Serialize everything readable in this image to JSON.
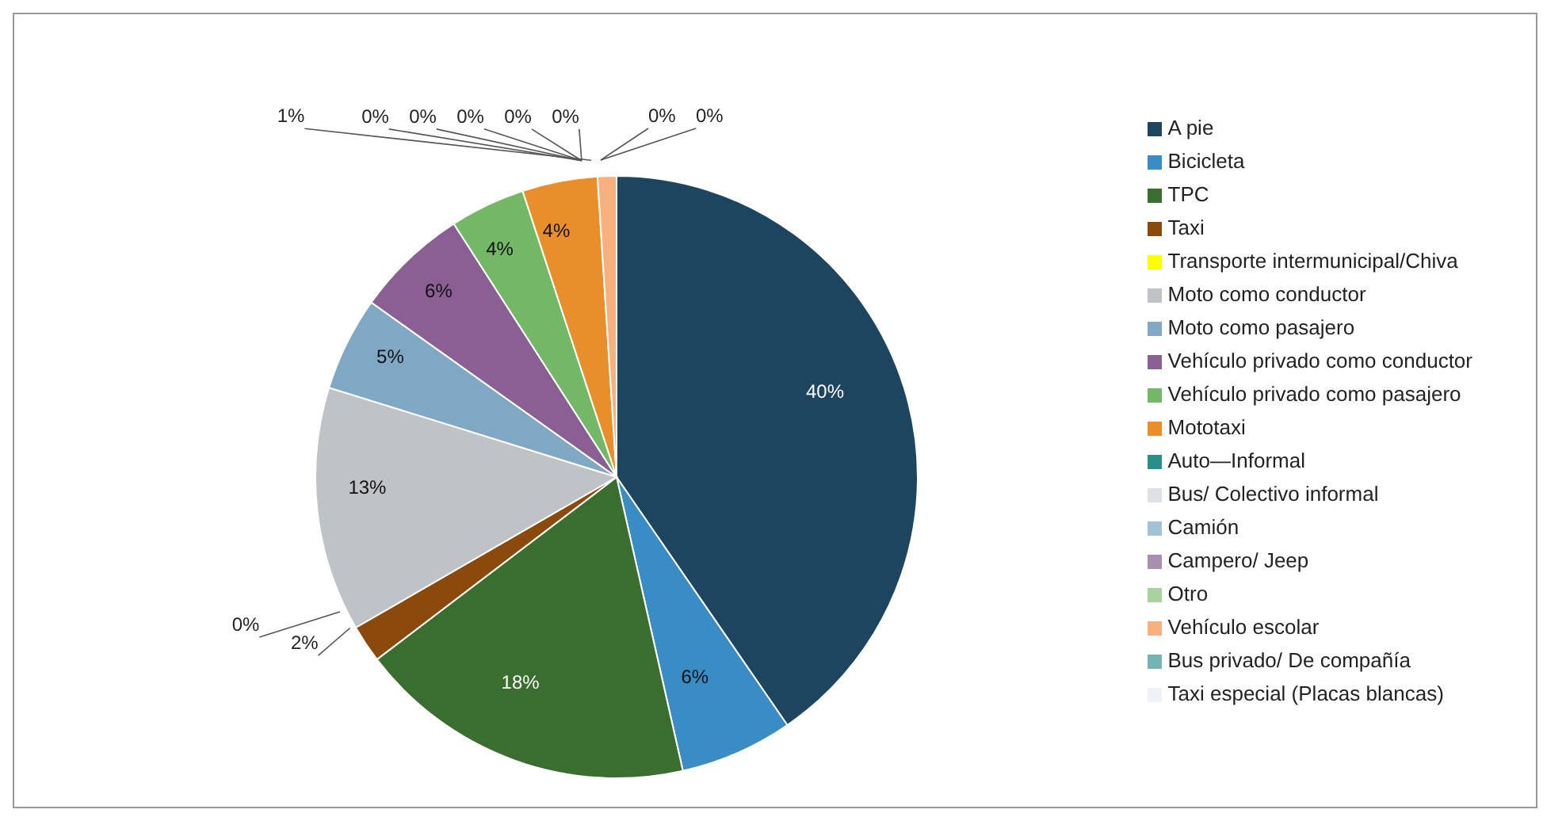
{
  "chart_data": {
    "type": "pie",
    "categories": [
      "A pie",
      "Bicicleta",
      "TPC",
      "Taxi",
      "Transporte intermunicipal/Chiva",
      "Moto como conductor",
      "Moto como pasajero",
      "Vehículo privado como conductor",
      "Vehículo privado como pasajero",
      "Mototaxi",
      "Auto—Informal",
      "Bus/ Colectivo informal",
      "Camión",
      "Campero/ Jeep",
      "Otro",
      "Vehículo escolar",
      "Bus privado/ De compañía",
      "Taxi especial (Placas blancas)"
    ],
    "values": [
      40,
      6,
      18,
      2,
      0,
      13,
      5,
      6,
      4,
      4,
      0,
      0,
      0,
      0,
      0,
      1,
      0,
      0
    ],
    "value_labels": [
      "40%",
      "6%",
      "18%",
      "2%",
      "0%",
      "13%",
      "5%",
      "6%",
      "4%",
      "4%",
      "0%",
      "0%",
      "0%",
      "0%",
      "0%",
      "1%",
      "0%",
      "0%"
    ],
    "colors": [
      "#1e4560",
      "#3a8cc4",
      "#3a6e2e",
      "#8b4a0c",
      "#ffff00",
      "#bfc3c6",
      "#7ea8c4",
      "#8a5f94",
      "#72b866",
      "#e88f2c",
      "#2a8f8a",
      "#dde2e6",
      "#a3c1d6",
      "#a98fb0",
      "#a6d49c",
      "#f7b07e",
      "#75b4b2",
      "#eef2f6"
    ],
    "legend": "right"
  }
}
